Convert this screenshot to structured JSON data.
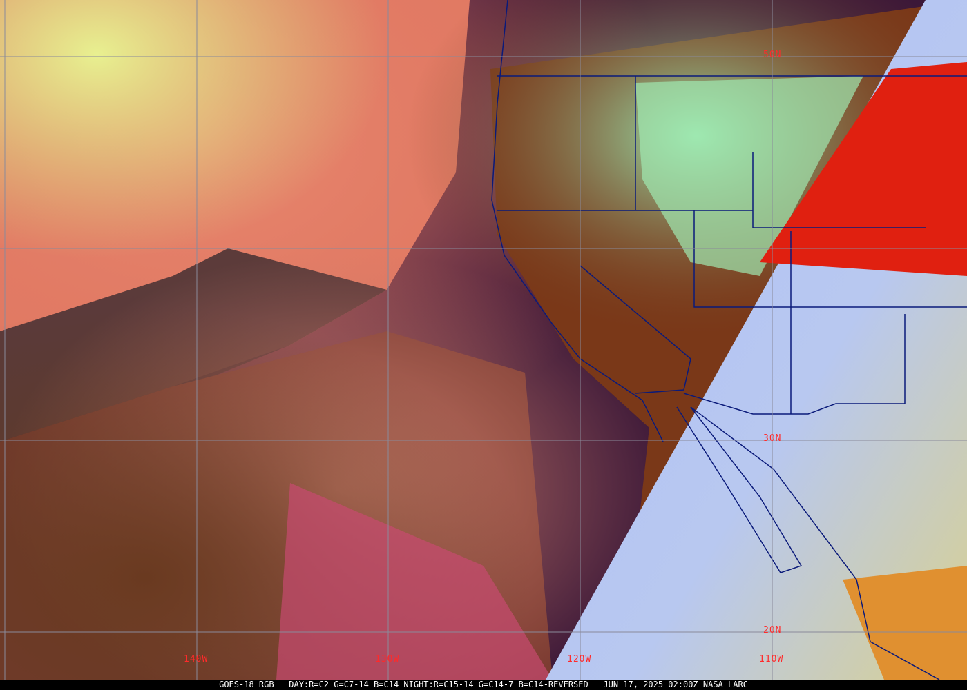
{
  "caption": "GOES-18 RGB   DAY:R=C2 G=C7-14 B=C14 NIGHT:R=C15-14 G=C14-7 B=C14-REVERSED   JUN 17, 2025 02:00Z NASA LARC",
  "grid": {
    "longitude_labels": [
      "140W",
      "130W",
      "120W",
      "110W"
    ],
    "latitude_labels": [
      "50N",
      "30N",
      "20N"
    ]
  },
  "colors": {
    "grid_lines": "#8a8a9a",
    "labels": "#ff2a2a",
    "borders": "#0a1a7a",
    "ocean_clear": "#3c1838",
    "night_side": "#a8b8f0"
  }
}
